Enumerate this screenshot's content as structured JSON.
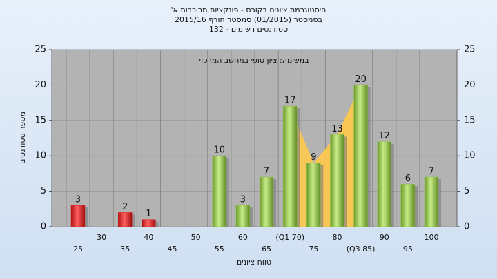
{
  "chart_data": {
    "type": "bar",
    "title_lines": [
      "היסטוגרמת ציונים בקורס - פונקציות מרוכבות א'",
      "בסמסטר  (01/2015)  סמסטר חורף 2015/16",
      "סטודנטים רשומים - 132"
    ],
    "annotation": "במשימה: ציון סופי במחשב המרכזי",
    "x_label": "טווח ציונים",
    "y_label": "מספר סטודנטים",
    "categories": [
      "25",
      "30",
      "35",
      "40",
      "45",
      "50",
      "55",
      "60",
      "65",
      "(Q1 70)",
      "75",
      "80",
      "(Q3 85)",
      "90",
      "95",
      "100"
    ],
    "values": [
      3,
      null,
      2,
      1,
      null,
      null,
      10,
      3,
      7,
      17,
      9,
      13,
      20,
      12,
      6,
      7
    ],
    "colors": [
      "#dd2020",
      null,
      "#dd2020",
      "#dd2020",
      null,
      null,
      "#8cc63f",
      "#8cc63f",
      "#8cc63f",
      "#8cc63f",
      "#8cc63f",
      "#8cc63f",
      "#8cc63f",
      "#8cc63f",
      "#8cc63f",
      "#8cc63f"
    ],
    "ylim": [
      0,
      25
    ],
    "yticks": [
      0,
      5,
      10,
      15,
      20,
      25
    ],
    "y2lim": [
      0,
      25
    ],
    "y2ticks": [
      0,
      5,
      10,
      15,
      20,
      25
    ],
    "grid": true
  }
}
